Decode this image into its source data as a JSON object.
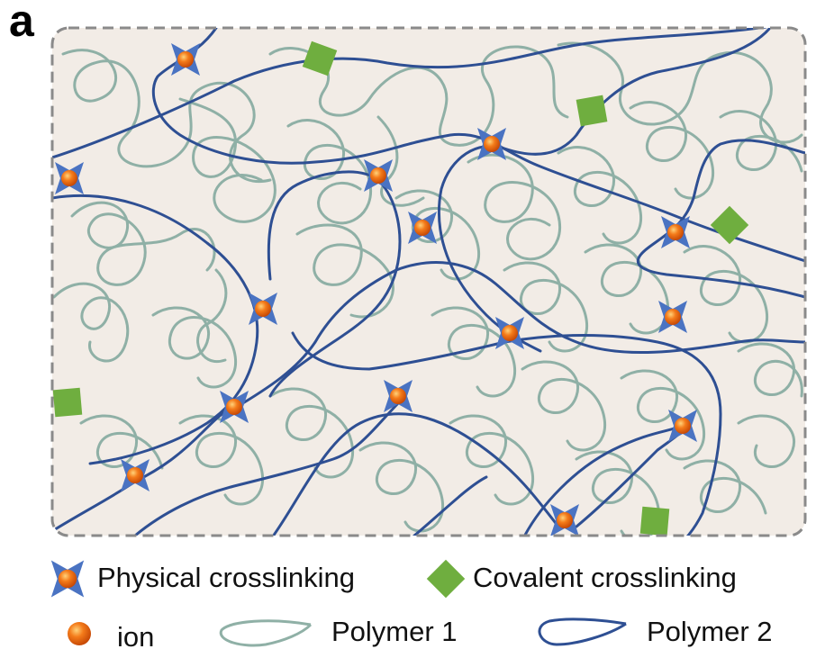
{
  "panel_label": "a",
  "legend": {
    "physical": "Physical crosslinking",
    "covalent": "Covalent crosslinking",
    "ion": "ion",
    "polymer1": "Polymer 1",
    "polymer2": "Polymer 2"
  },
  "colors": {
    "background": "#f2ece6",
    "border": "#8a8a8a",
    "polymer1": "#8fb0a6",
    "polymer2": "#2e4f93",
    "crosslink_blue": "#4a73c2",
    "ion_orange": "#f06a10",
    "covalent_green": "#6fae3f"
  },
  "icons": [
    "physical-crosslink-icon",
    "covalent-crosslink-icon",
    "ion-icon",
    "polymer-1-line-icon",
    "polymer-2-line-icon"
  ]
}
